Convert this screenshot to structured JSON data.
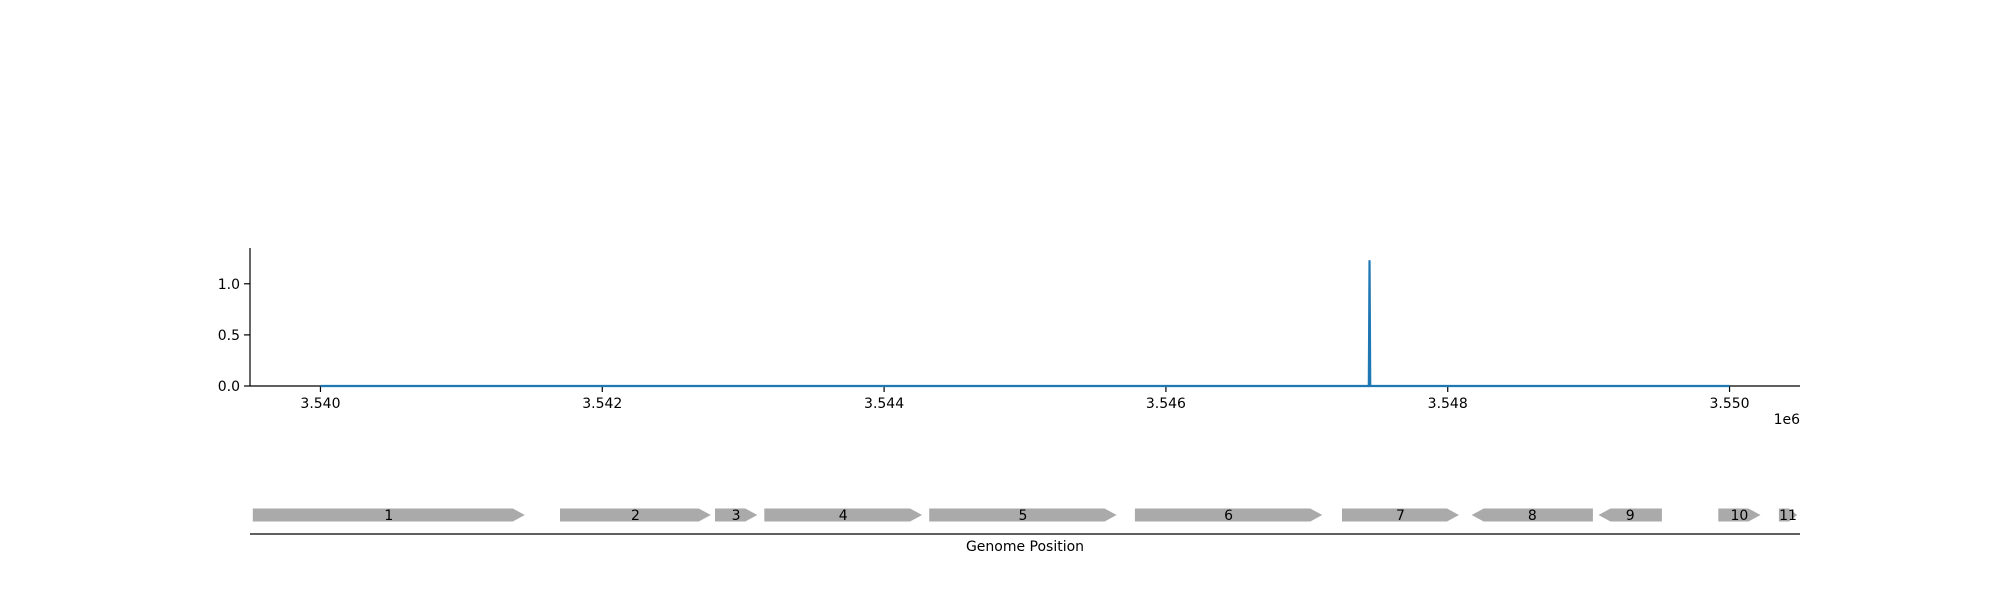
{
  "colors": {
    "signal_line": "#1f77b4",
    "axis": "#000000",
    "gene_fill": "#aaaaaa",
    "background": "#ffffff"
  },
  "chart_data": [
    {
      "type": "line",
      "series": [
        {
          "x": [
            3540000,
            3547440,
            3547445,
            3547450,
            3550000
          ],
          "y": [
            0.0,
            0.0,
            1.23,
            0.0,
            0.0
          ]
        }
      ],
      "xlim": [
        3539500,
        3550500
      ],
      "ylim": [
        0.0,
        1.35
      ],
      "x_ticks": [
        3540000,
        3542000,
        3544000,
        3546000,
        3548000,
        3550000
      ],
      "x_tick_labels": [
        "3.540",
        "3.542",
        "3.544",
        "3.546",
        "3.548",
        "3.550"
      ],
      "y_ticks": [
        0.0,
        0.5,
        1.0
      ],
      "y_tick_labels": [
        "0.0",
        "0.5",
        "1.0"
      ],
      "x_offset_label": "1e6",
      "grid": false,
      "spines": [
        "left",
        "bottom"
      ]
    },
    {
      "type": "gene-track",
      "xlim": [
        3539500,
        3550500
      ],
      "xlabel": "Genome Position",
      "genes": [
        {
          "label": "1",
          "start": 3539520,
          "end": 3541450,
          "strand": "+"
        },
        {
          "label": "2",
          "start": 3541700,
          "end": 3542770,
          "strand": "+"
        },
        {
          "label": "3",
          "start": 3542800,
          "end": 3543100,
          "strand": "+"
        },
        {
          "label": "4",
          "start": 3543150,
          "end": 3544270,
          "strand": "+"
        },
        {
          "label": "5",
          "start": 3544320,
          "end": 3545650,
          "strand": "+"
        },
        {
          "label": "6",
          "start": 3545780,
          "end": 3547110,
          "strand": "+"
        },
        {
          "label": "7",
          "start": 3547250,
          "end": 3548080,
          "strand": "+"
        },
        {
          "label": "8",
          "start": 3548170,
          "end": 3549030,
          "strand": "-"
        },
        {
          "label": "9",
          "start": 3549070,
          "end": 3549520,
          "strand": "-"
        },
        {
          "label": "10",
          "start": 3549920,
          "end": 3550220,
          "strand": "+"
        },
        {
          "label": "11",
          "start": 3550350,
          "end": 3550480,
          "strand": "+"
        }
      ]
    }
  ]
}
